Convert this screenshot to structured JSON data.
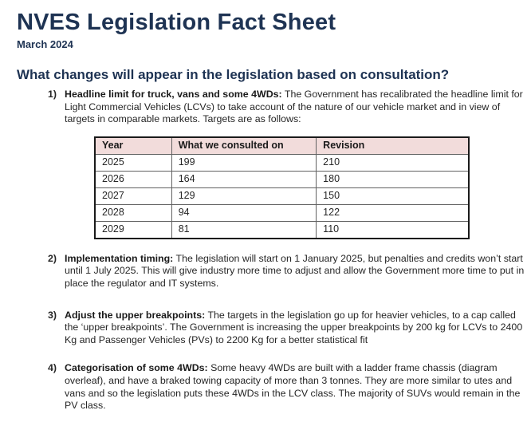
{
  "document": {
    "title": "NVES Legislation Fact Sheet",
    "date": "March 2024",
    "heading": "What changes will appear in the legislation based on consultation?"
  },
  "items": [
    {
      "num": "1)",
      "label": "Headline limit for truck, vans and some 4WDs:",
      "text": " The Government has recalibrated the headline limit for Light Commercial Vehicles (LCVs) to take account of the nature of our vehicle market and in view of targets in comparable markets. Targets are as follows:"
    },
    {
      "num": "2)",
      "label": "Implementation timing:",
      "text": " The legislation will start on 1 January 2025, but penalties and credits won’t start until 1 July 2025. This will give industry more time to adjust and allow the Government more time to put in place the regulator and IT systems."
    },
    {
      "num": "3)",
      "label": "Adjust the upper breakpoints:",
      "text": " The targets in the legislation go up for heavier vehicles, to a cap called the ‘upper breakpoints’. The Government is increasing the upper breakpoints by 200 kg for LCVs to 2400 Kg and Passenger Vehicles (PVs) to 2200 Kg for a better statistical fit"
    },
    {
      "num": "4)",
      "label": "Categorisation of some 4WDs:",
      "text": " Some heavy 4WDs are built with a ladder frame chassis (diagram overleaf), and have a braked towing capacity of more than 3 tonnes. They are more similar to utes and vans and so the legislation puts these 4WDs in the LCV class. The majority of SUVs would remain in the PV class."
    }
  ],
  "table": {
    "headers": [
      "Year",
      "What we consulted on",
      "Revision"
    ],
    "rows": [
      [
        "2025",
        "199",
        "210"
      ],
      [
        "2026",
        "164",
        "180"
      ],
      [
        "2027",
        "129",
        "150"
      ],
      [
        "2028",
        "94",
        "122"
      ],
      [
        "2029",
        "81",
        "110"
      ]
    ]
  },
  "colors": {
    "heading_navy": "#1e3353",
    "table_header_bg": "#f2dcdb",
    "body_text": "#262626"
  }
}
